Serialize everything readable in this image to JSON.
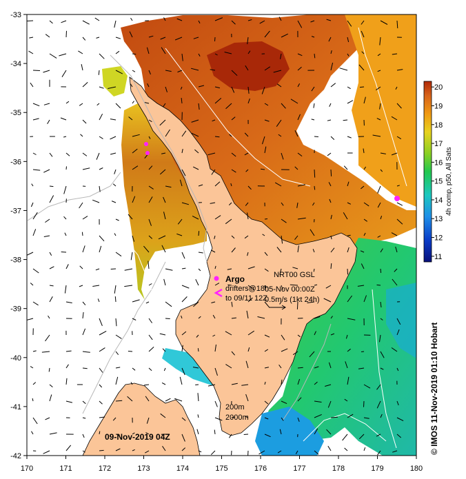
{
  "map": {
    "lon_ticks": [
      "170",
      "171",
      "172",
      "173",
      "174",
      "175",
      "176",
      "177",
      "178",
      "179",
      "180"
    ],
    "lat_ticks": [
      "-33",
      "-34",
      "-35",
      "-36",
      "-37",
      "-38",
      "-39",
      "-40",
      "-41",
      "-42"
    ],
    "lon_range": [
      170,
      180
    ],
    "lat_range": [
      -42,
      -33
    ]
  },
  "colorbar": {
    "label": "4h comp, p50, All Sats",
    "ticks": [
      "11",
      "12",
      "13",
      "14",
      "15",
      "16",
      "17",
      "18",
      "19",
      "20"
    ],
    "range": [
      10.7,
      20.3
    ],
    "colors": [
      "#08107a",
      "#0a3cc8",
      "#1f8fe8",
      "#1cc8c0",
      "#22c84e",
      "#8ad022",
      "#e8d21e",
      "#f09a12",
      "#d8641a",
      "#b02a08"
    ]
  },
  "legend": {
    "argo_label": "Argo",
    "drifters_label": "drifters@18h",
    "drifters_date": "to 09/11 12Z",
    "current_source": "NRT00 GSL",
    "current_date": "05-Nov 00:00Z",
    "current_scale": "0.5m/s (1kt 24h)",
    "contour_200": "200m",
    "contour_2000": "2000m"
  },
  "date_label": "09-Nov-2019 04Z",
  "credit": "© IMOS 11-Nov-2019 01:10 Hobart",
  "colors": {
    "land": "#fbc598",
    "argo": "#ff22ff",
    "drifter": "#ff22ff"
  }
}
